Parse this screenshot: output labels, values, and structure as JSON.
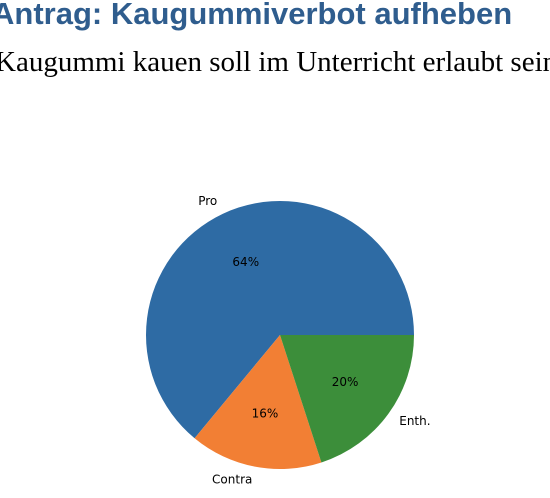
{
  "chart_data": {
    "type": "pie",
    "title": "Antrag: Kaugummiverbot aufheben",
    "subtitle": "Kaugummi kauen soll im Unterricht erlaubt sein",
    "categories": [
      "Pro",
      "Contra",
      "Enth."
    ],
    "values": [
      64,
      16,
      20
    ],
    "value_labels": [
      "64%",
      "16%",
      "20%"
    ],
    "colors": [
      "#2e6ba4",
      "#f27f34",
      "#3c8e3a"
    ]
  }
}
